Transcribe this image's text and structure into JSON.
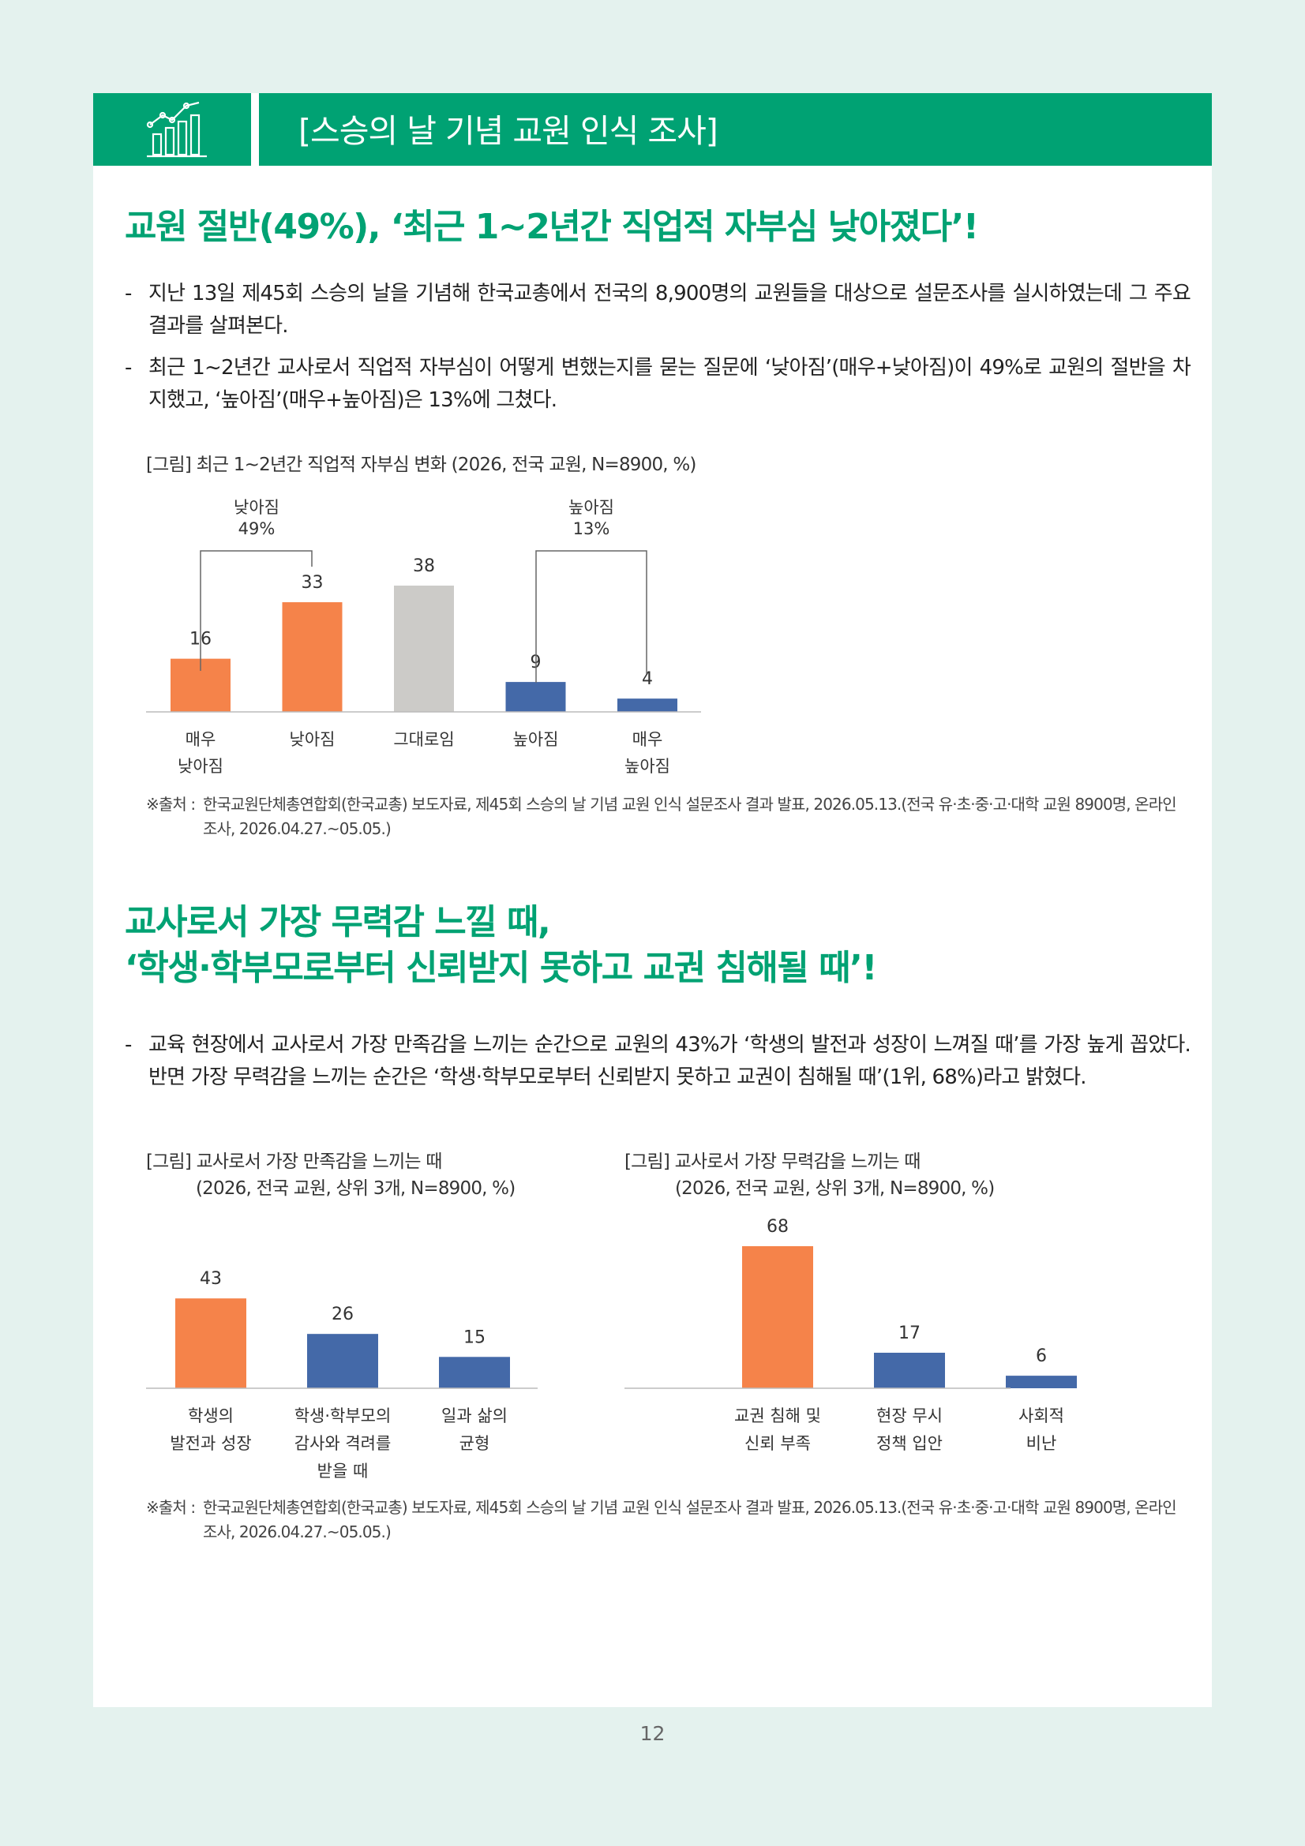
{
  "header": {
    "title": "[스승의 날 기념 교원 인식 조사]",
    "icon": "bar-chart-trend-icon",
    "color": "#00a273"
  },
  "section1": {
    "heading": "교원 절반(49%), ‘최근 1~2년간 직업적 자부심 낮아졌다’!",
    "bullets": [
      "지난 13일 제45회 스승의 날을 기념해 한국교총에서 전국의 8,900명의 교원들을 대상으로 설문조사를 실시하였는데 그 주요 결과를 살펴본다.",
      "최근 1~2년간 교사로서 직업적 자부심이 어떻게 변했는지를 묻는 질문에 ‘낮아짐’(매우+낮아짐)이 49%로 교원의 절반을 차지했고, ‘높아짐’(매우+높아짐)은 13%에 그쳤다."
    ],
    "figure_caption": "[그림] 최근 1~2년간 직업적 자부심 변화 (2026, 전국 교원, N=8900, %)",
    "group_labels": [
      {
        "name": "낮아짐",
        "value": "49%"
      },
      {
        "name": "높아짐",
        "value": "13%"
      }
    ],
    "source_lead": "※출처 :",
    "source_body": "한국교원단체총연합회(한국교총) 보도자료, 제45회 스승의 날 기념 교원 인식 설문조사 결과 발표, 2026.05.13.(전국 유·초·중·고·대학 교원 8900명, 온라인 조사, 2026.04.27.~05.05.)"
  },
  "section2": {
    "heading_line1": "교사로서 가장 무력감 느낄 때,",
    "heading_line2": "‘학생·학부모로부터 신뢰받지 못하고 교권 침해될 때’!",
    "bullet": "교육 현장에서 교사로서 가장 만족감을 느끼는 순간으로 교원의 43%가 ‘학생의 발전과 성장이 느껴질 때’를 가장 높게 꼽았다. 반면 가장 무력감을 느끼는 순간은 ‘학생·학부모로부터 신뢰받지 못하고 교권이 침해될 때’(1위, 68%)라고 밝혔다.",
    "fig_left_caption_1": "[그림] 교사로서 가장 만족감을 느끼는 때",
    "fig_left_caption_2": "(2026, 전국 교원, 상위 3개, N=8900, %)",
    "fig_right_caption_1": "[그림] 교사로서 가장 무력감을 느끼는 때",
    "fig_right_caption_2": "(2026, 전국 교원, 상위 3개, N=8900, %)",
    "source_lead": "※출처 :",
    "source_body": "한국교원단체총연합회(한국교총) 보도자료, 제45회 스승의 날 기념 교원 인식 설문조사 결과 발표, 2026.05.13.(전국 유·초·중·고·대학 교원 8900명, 온라인 조사, 2026.04.27.~05.05.)"
  },
  "chart_data": [
    {
      "type": "bar",
      "categories": [
        [
          "매우",
          "낮아짐"
        ],
        [
          "낮아짐"
        ],
        [
          "그대로임"
        ],
        [
          "높아짐"
        ],
        [
          "매우",
          "높아짐"
        ]
      ],
      "values": [
        16,
        33,
        38,
        9,
        4
      ],
      "colors": [
        "#f5834a",
        "#f5834a",
        "#cccbc8",
        "#4469a8",
        "#4469a8"
      ],
      "ylim": [
        0,
        38
      ]
    },
    {
      "type": "bar",
      "categories": [
        [
          "학생의",
          "발전과 성장"
        ],
        [
          "학생·학부모의",
          "감사와 격려를",
          "받을 때"
        ],
        [
          "일과 삶의",
          "균형"
        ]
      ],
      "values": [
        43,
        26,
        15
      ],
      "colors": [
        "#f5834a",
        "#4469a8",
        "#4469a8"
      ],
      "ylim": [
        0,
        68
      ]
    },
    {
      "type": "bar",
      "categories": [
        [
          "교권 침해 및",
          "신뢰 부족"
        ],
        [
          "현장 무시",
          "정책 입안"
        ],
        [
          "사회적",
          "비난"
        ]
      ],
      "values": [
        68,
        17,
        6
      ],
      "colors": [
        "#f5834a",
        "#4469a8",
        "#4469a8"
      ],
      "ylim": [
        0,
        68
      ]
    }
  ],
  "page_number": "12"
}
